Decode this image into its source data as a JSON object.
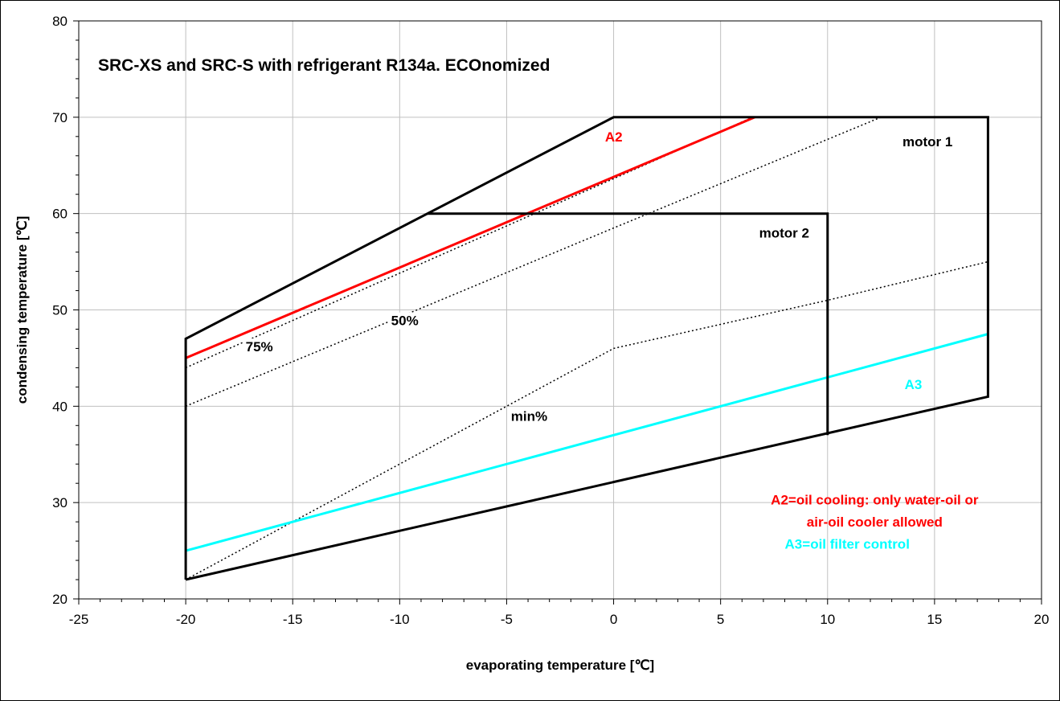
{
  "chart_data": {
    "type": "line",
    "title": "SRC-XS and SRC-S with refrigerant R134a. ECOnomized",
    "xlabel": "evaporating temperature [℃]",
    "ylabel": "condensing temperature [℃]",
    "xlim": [
      -25,
      20
    ],
    "ylim": [
      20,
      80
    ],
    "x_ticks": [
      -25,
      -20,
      -15,
      -10,
      -5,
      0,
      5,
      10,
      15,
      20
    ],
    "y_ticks": [
      20,
      30,
      40,
      50,
      60,
      70,
      80
    ],
    "x_tick_labels": [
      "-25",
      "-20",
      "-15",
      "-10",
      "-5",
      "0",
      "5",
      "10",
      "15",
      "20"
    ],
    "y_tick_labels": [
      "20",
      "30",
      "40",
      "50",
      "60",
      "70",
      "80"
    ],
    "x_minor_step": 1,
    "y_minor_step": 2,
    "grid": true,
    "colors": {
      "envelope": "#000000",
      "A2": "#ff0000",
      "A3": "#00ffff",
      "capacity": "#000000",
      "grid": "#c0c0c0"
    },
    "series": [
      {
        "name": "motor 1",
        "style": "solid-black-thick",
        "points": [
          [
            -20,
            22
          ],
          [
            -20,
            47
          ],
          [
            0,
            70
          ],
          [
            17.5,
            70
          ],
          [
            17.5,
            41
          ],
          [
            -20,
            22
          ]
        ]
      },
      {
        "name": "motor 2",
        "style": "solid-black-thick",
        "points": [
          [
            -8.7,
            60
          ],
          [
            10,
            60
          ],
          [
            10,
            37
          ]
        ]
      },
      {
        "name": "A2",
        "style": "solid-red",
        "points": [
          [
            -20,
            45
          ],
          [
            6.6,
            70
          ]
        ]
      },
      {
        "name": "A3",
        "style": "solid-cyan",
        "points": [
          [
            -20,
            25
          ],
          [
            17.5,
            47.5
          ]
        ]
      },
      {
        "name": "75%",
        "style": "dotted",
        "points": [
          [
            -20,
            44
          ],
          [
            6.5,
            70
          ]
        ]
      },
      {
        "name": "50%",
        "style": "dotted",
        "points": [
          [
            -20,
            40
          ],
          [
            0,
            58.5
          ],
          [
            12.5,
            70
          ]
        ]
      },
      {
        "name": "min%",
        "style": "dotted",
        "points": [
          [
            -20,
            22
          ],
          [
            0,
            46
          ],
          [
            10,
            51
          ],
          [
            17.5,
            55
          ]
        ]
      }
    ],
    "annotations": [
      {
        "text": "A2",
        "x": -0.4,
        "y": 67.5,
        "color": "#ff0000"
      },
      {
        "text": "motor 1",
        "x": 13.5,
        "y": 67,
        "color": "#000000"
      },
      {
        "text": "motor 2",
        "x": 6.8,
        "y": 57.5,
        "color": "#000000"
      },
      {
        "text": "50%",
        "x": -10.4,
        "y": 48.4,
        "color": "#000000"
      },
      {
        "text": "75%",
        "x": -17.2,
        "y": 45.7,
        "color": "#000000"
      },
      {
        "text": "min%",
        "x": -4.8,
        "y": 38.5,
        "color": "#000000"
      },
      {
        "text": "A3",
        "x": 13.6,
        "y": 41.8,
        "color": "#00ffff"
      },
      {
        "text": "A2=oil cooling: only water-oil or",
        "x": 12.2,
        "y": 29.8,
        "color": "#ff0000"
      },
      {
        "text": "air-oil cooler allowed",
        "x": 12.2,
        "y": 27.5,
        "color": "#ff0000"
      },
      {
        "text": "A3=oil filter control",
        "x": 8.0,
        "y": 25.2,
        "color": "#00ffff"
      }
    ]
  }
}
